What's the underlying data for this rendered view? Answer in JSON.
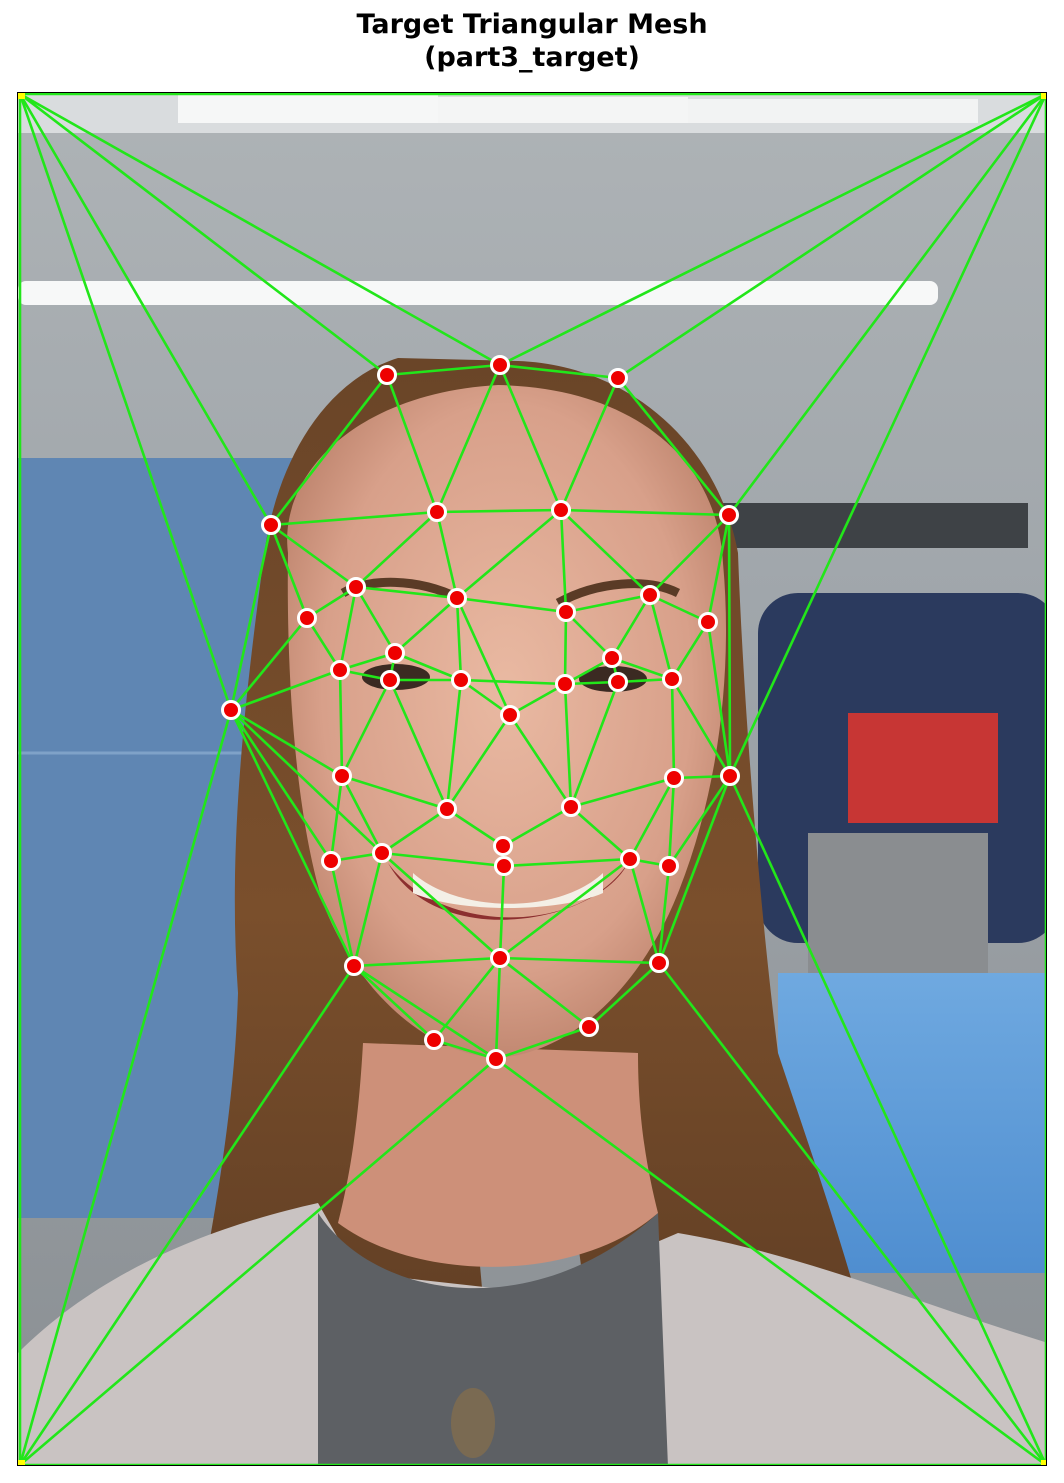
{
  "title": {
    "line1": "Target Triangular Mesh",
    "line2": "(part3_target)"
  },
  "colors": {
    "mesh_edge": "#22e61a",
    "landmark_fill": "#ee0000",
    "landmark_stroke": "#ffffff",
    "corner_point": "#ffff00"
  },
  "photo": {
    "subject": "smiling woman with long brown hair",
    "background": "laboratory with blue wall panels, ceiling lights and blue machinery"
  }
}
